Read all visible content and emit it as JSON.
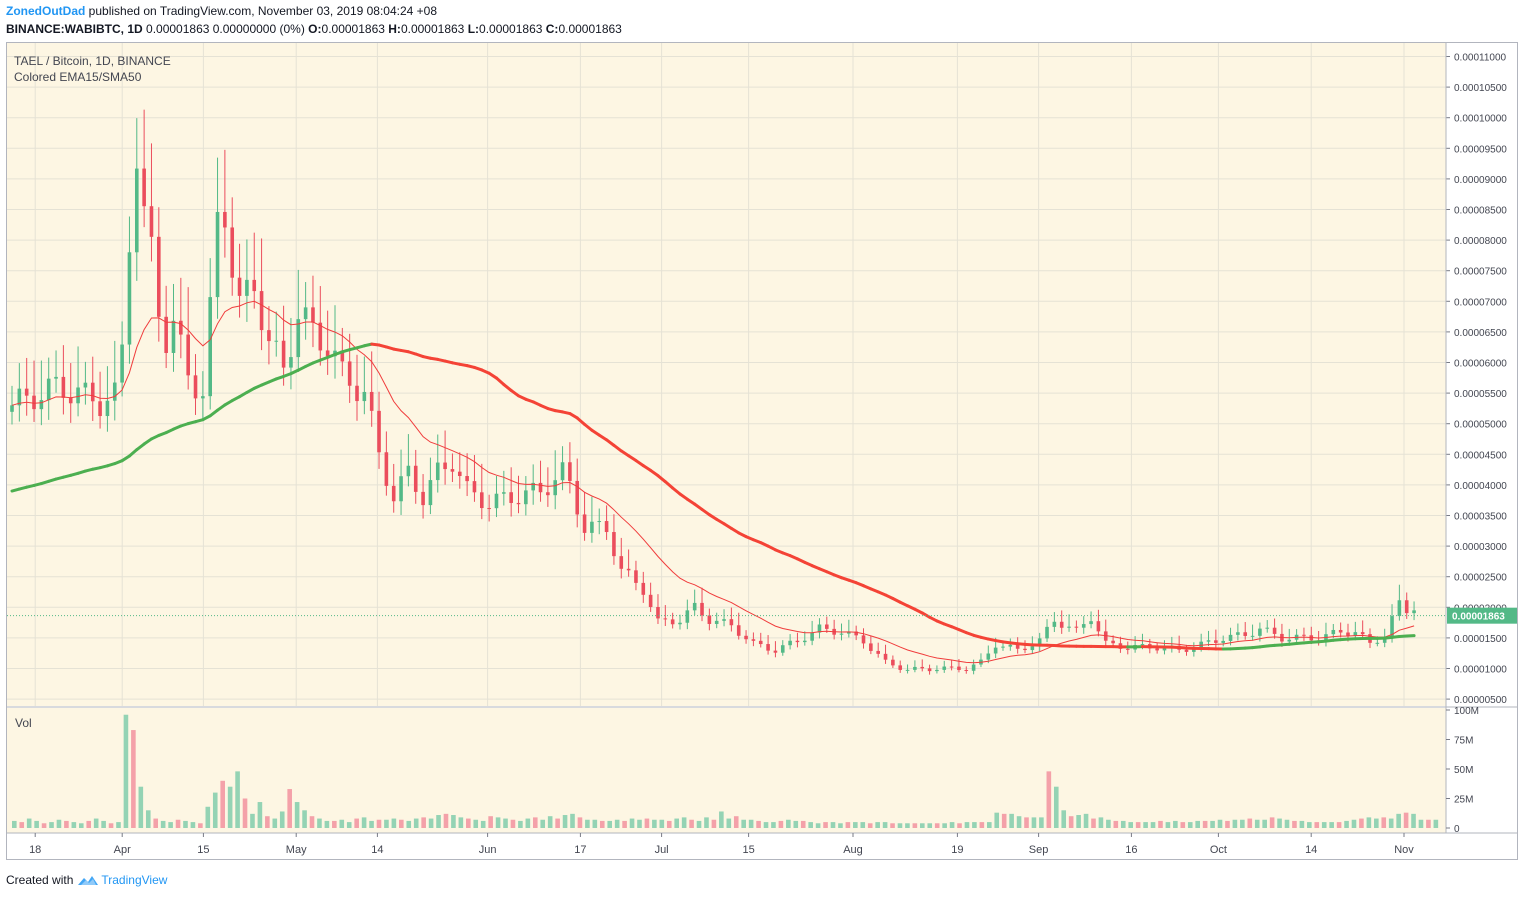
{
  "header": {
    "author": "ZonedOutDad",
    "published": "published on TradingView.com, November 03, 2019 08:04:24 +08",
    "symbol": "BINANCE:WABIBTC, 1D",
    "change": "0.00001863 0.00000000 (0%)",
    "o_label": "O:",
    "o": "0.00001863",
    "h_label": "H:",
    "h": "0.00001863",
    "l_label": "L:",
    "l": "0.00001863",
    "c_label": "C:",
    "c": "0.00001863"
  },
  "legend": {
    "title": "TAEL / Bitcoin, 1D, BINANCE",
    "indicator": "Colored EMA15/SMA50",
    "volume": "Vol"
  },
  "footer": {
    "created": "Created with",
    "brand": "TradingView",
    "logo_icon": "tradingview-logo-icon"
  },
  "colors": {
    "background": "#fdf6e3",
    "up": "#53b987",
    "down": "#eb4d5c",
    "up_volume": "#94d3b4",
    "down_volume": "#f4a1a9",
    "ema": "#f03c3c",
    "sma_up": "#4caf50",
    "sma_down": "#f44336",
    "last_price_label": "#53b987",
    "grid": "#e5e2d5"
  },
  "chart_data": [
    {
      "type": "candlestick",
      "title": "TAEL / Bitcoin, 1D, BINANCE",
      "interval": "1D",
      "y_scale": "linear",
      "ylim": [
        4e-06,
        0.000112
      ],
      "y_ticks": [
        "0.00011000",
        "0.00010500",
        "0.00010000",
        "0.00009500",
        "0.00009000",
        "0.00008500",
        "0.00008000",
        "0.00007500",
        "0.00007000",
        "0.00006500",
        "0.00006000",
        "0.00005500",
        "0.00005000",
        "0.00004500",
        "0.00004000",
        "0.00003500",
        "0.00003000",
        "0.00002500",
        "0.00002000",
        "0.00001500",
        "0.00001000",
        "0.00000500"
      ],
      "x_ticks": [
        "18",
        "Apr",
        "15",
        "May",
        "14",
        "Jun",
        "17",
        "Jul",
        "15",
        "Aug",
        "19",
        "Sep",
        "16",
        "Oct",
        "14",
        "Nov"
      ],
      "last_price": "0.00001863",
      "grid": true,
      "anchors_close": [
        [
          0,
          5.3
        ],
        [
          3,
          5.45
        ],
        [
          6,
          5.6
        ],
        [
          9,
          5.5
        ],
        [
          12,
          5.35
        ],
        [
          14,
          5.45
        ],
        [
          15,
          6.2
        ],
        [
          16,
          8.1
        ],
        [
          17,
          9.4
        ],
        [
          18,
          8.3
        ],
        [
          19,
          7.8
        ],
        [
          20,
          6.9
        ],
        [
          21,
          6.4
        ],
        [
          22,
          6.6
        ],
        [
          23,
          6.2
        ],
        [
          24,
          5.8
        ],
        [
          26,
          5.5
        ],
        [
          27,
          6.8
        ],
        [
          28,
          8.3
        ],
        [
          29,
          8.5
        ],
        [
          30,
          7.6
        ],
        [
          31,
          6.9
        ],
        [
          33,
          7.3
        ],
        [
          35,
          6.3
        ],
        [
          37,
          5.9
        ],
        [
          39,
          6.8
        ],
        [
          41,
          6.5
        ],
        [
          43,
          6.3
        ],
        [
          45,
          5.8
        ],
        [
          48,
          5.5
        ],
        [
          50,
          4.5
        ],
        [
          52,
          3.8
        ],
        [
          54,
          4.2
        ],
        [
          56,
          3.8
        ],
        [
          58,
          4.2
        ],
        [
          60,
          4.4
        ],
        [
          62,
          3.9
        ],
        [
          65,
          3.7
        ],
        [
          68,
          3.8
        ],
        [
          72,
          3.9
        ],
        [
          75,
          4.2
        ],
        [
          76,
          4.0
        ],
        [
          78,
          3.3
        ],
        [
          81,
          3.3
        ],
        [
          83,
          2.6
        ],
        [
          86,
          2.3
        ],
        [
          88,
          1.75
        ],
        [
          91,
          1.8
        ],
        [
          93,
          2.0
        ],
        [
          95,
          1.8
        ],
        [
          98,
          1.7
        ],
        [
          101,
          1.4
        ],
        [
          104,
          1.3
        ],
        [
          107,
          1.45
        ],
        [
          110,
          1.65
        ],
        [
          113,
          1.6
        ],
        [
          116,
          1.45
        ],
        [
          119,
          1.1
        ],
        [
          122,
          0.98
        ],
        [
          126,
          1.0
        ],
        [
          130,
          1.0
        ],
        [
          132,
          1.1
        ],
        [
          134,
          1.4
        ],
        [
          137,
          1.3
        ],
        [
          140,
          1.45
        ],
        [
          142,
          1.8
        ],
        [
          145,
          1.6
        ],
        [
          147,
          1.85
        ],
        [
          149,
          1.4
        ],
        [
          152,
          1.35
        ],
        [
          156,
          1.35
        ],
        [
          159,
          1.3
        ],
        [
          161,
          1.35
        ],
        [
          165,
          1.5
        ],
        [
          168,
          1.55
        ],
        [
          170,
          1.65
        ],
        [
          173,
          1.5
        ],
        [
          176,
          1.5
        ],
        [
          178,
          1.5
        ],
        [
          181,
          1.6
        ],
        [
          183,
          1.6
        ],
        [
          185,
          1.4
        ],
        [
          187,
          1.55
        ],
        [
          189,
          2.05
        ],
        [
          190,
          1.95
        ],
        [
          191,
          1.863
        ]
      ],
      "volume": {
        "ylim": [
          0,
          100
        ],
        "y_ticks": [
          "100M",
          "75M",
          "50M",
          "25M",
          "0"
        ],
        "y_ticks_values": [
          100,
          75,
          50,
          25,
          0
        ],
        "values_M": [
          6,
          5,
          8,
          6,
          4,
          5,
          7,
          6,
          5,
          4,
          6,
          8,
          6,
          4,
          5,
          96,
          83,
          35,
          15,
          8,
          6,
          5,
          7,
          6,
          5,
          4,
          18,
          30,
          40,
          35,
          48,
          25,
          12,
          22,
          10,
          8,
          14,
          33,
          22,
          15,
          10,
          8,
          6,
          6,
          7,
          5,
          8,
          9,
          6,
          7,
          7,
          8,
          7,
          6,
          8,
          9,
          8,
          11,
          12,
          11,
          9,
          8,
          7,
          6,
          10,
          9,
          8,
          7,
          6,
          8,
          9,
          7,
          10,
          8,
          11,
          12,
          9,
          7,
          7,
          6,
          6,
          7,
          6,
          8,
          7,
          8,
          7,
          7,
          6,
          8,
          9,
          7,
          6,
          9,
          7,
          14,
          8,
          10,
          7,
          7,
          6,
          5,
          5,
          6,
          7,
          6,
          6,
          5,
          4,
          5,
          5,
          4,
          5,
          5,
          5,
          4,
          5,
          5,
          4,
          4,
          4,
          4,
          4,
          4,
          4,
          4,
          5,
          4,
          5,
          5,
          5,
          5,
          13,
          12,
          12,
          10,
          9,
          9,
          9,
          48,
          35,
          15,
          10,
          11,
          12,
          8,
          9,
          7,
          6,
          6,
          5,
          5,
          5,
          5,
          6,
          5,
          6,
          5,
          5,
          6,
          6,
          6,
          7,
          6,
          7,
          7,
          8,
          7,
          7,
          9,
          8,
          7,
          6,
          6,
          5,
          5,
          5,
          5,
          5,
          6,
          7,
          8,
          9,
          8,
          9,
          8,
          12,
          13,
          12,
          7,
          7,
          7
        ]
      },
      "series": [
        {
          "name": "EMA15",
          "color": "#f03c3c"
        },
        {
          "name": "SMA50",
          "color": "#4caf50"
        }
      ]
    }
  ]
}
